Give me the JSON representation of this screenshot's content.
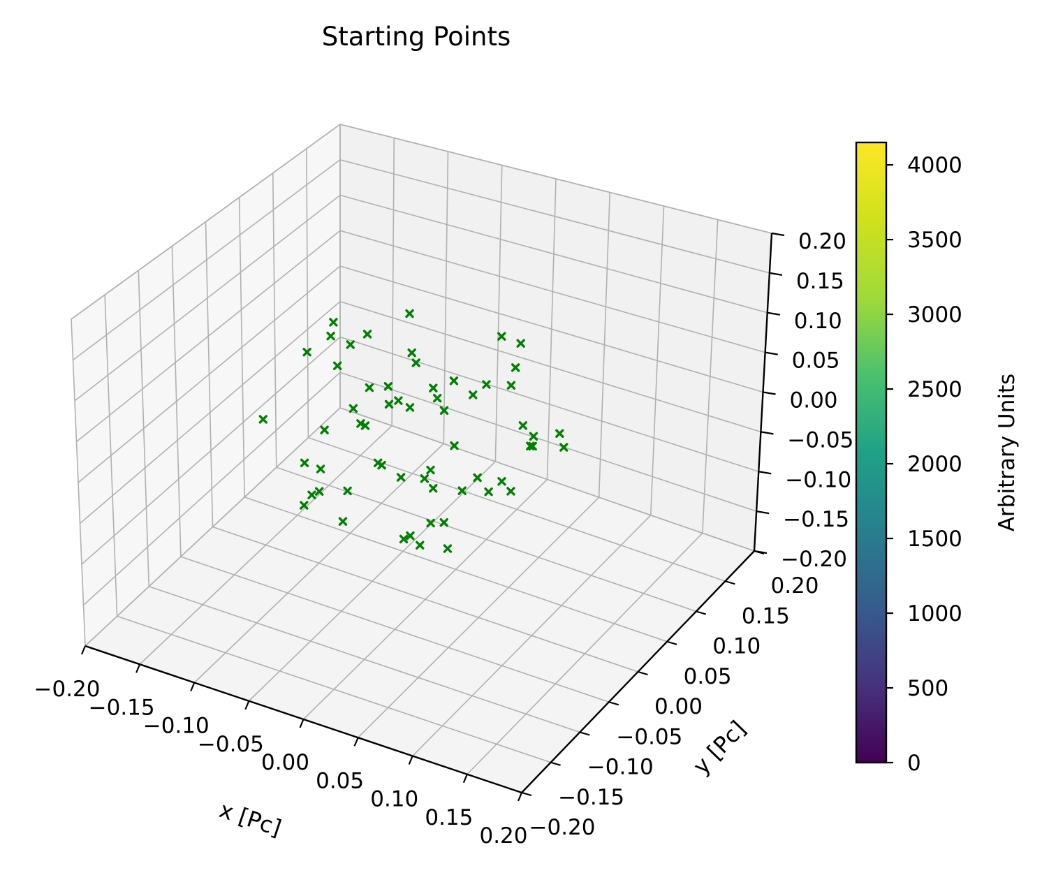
{
  "chart_data": {
    "type": "scatter",
    "projection": "3d",
    "title": "Starting Points",
    "xlabel": "x [Pc]",
    "ylabel": "y [Pc]",
    "zlabel": "",
    "xlim": [
      -0.2,
      0.2
    ],
    "ylim": [
      -0.2,
      0.2
    ],
    "zlim": [
      -0.2,
      0.2
    ],
    "grid": true,
    "x_ticks": [
      "−0.20",
      "−0.15",
      "−0.10",
      "−0.05",
      "0.00",
      "0.05",
      "0.10",
      "0.15",
      "0.20"
    ],
    "y_ticks": [
      "−0.20",
      "−0.15",
      "−0.10",
      "−0.05",
      "0.00",
      "0.05",
      "0.10",
      "0.15",
      "0.20"
    ],
    "z_ticks": [
      "−0.20",
      "−0.15",
      "−0.10",
      "−0.05",
      "0.00",
      "0.05",
      "0.10",
      "0.15",
      "0.20"
    ],
    "marker": "x",
    "marker_color": "#008000",
    "series": [
      {
        "points": [
          [
            -0.126,
            -0.042,
            0.005
          ],
          [
            -0.1,
            0.05,
            0.048
          ],
          [
            -0.003,
            0.078,
            0.004
          ],
          [
            -0.095,
            0.068,
            0.051
          ],
          [
            -0.045,
            0.05,
            -0.01
          ],
          [
            -0.02,
            0.05,
            0.013
          ],
          [
            -0.074,
            0.01,
            0.005
          ],
          [
            -0.05,
            0.04,
            0.004
          ],
          [
            -0.014,
            -0.056,
            0.01
          ],
          [
            0.061,
            0.046,
            0.016
          ],
          [
            -0.093,
            -0.009,
            -0.068
          ],
          [
            -0.082,
            -0.042,
            -0.072
          ],
          [
            -0.037,
            -0.071,
            -0.064
          ],
          [
            0.027,
            -0.02,
            -0.074
          ],
          [
            0.016,
            -0.024,
            -0.009
          ],
          [
            0.084,
            0.074,
            -0.023
          ],
          [
            -0.073,
            -0.017,
            0.08
          ],
          [
            -0.064,
            0.081,
            0.082
          ],
          [
            -0.011,
            0.027,
            0.047
          ],
          [
            0.017,
            0.087,
            0.082
          ],
          [
            -0.125,
            0.025,
            0.045
          ],
          [
            0.049,
            -0.083,
            -0.018
          ],
          [
            0.078,
            -0.003,
            -0.024
          ],
          [
            0.03,
            -0.065,
            -0.068
          ],
          [
            -0.031,
            -0.054,
            0.051
          ],
          [
            -0.032,
            0.029,
            0.082
          ],
          [
            0.051,
            0.083,
            -0.03
          ],
          [
            0.001,
            -0.077,
            0.029
          ],
          [
            0.024,
            0.0,
            0.008
          ],
          [
            0.013,
            -0.061,
            -0.071
          ],
          [
            -0.047,
            -0.046,
            -0.048
          ],
          [
            -0.004,
            0.048,
            0.044
          ],
          [
            -0.034,
            -0.035,
            0.082
          ],
          [
            0.064,
            0.054,
            -0.015
          ],
          [
            0.04,
            0.063,
            0.046
          ],
          [
            -0.061,
            -0.091,
            -0.04
          ],
          [
            0.01,
            0.04,
            -0.086
          ],
          [
            -0.048,
            0.02,
            0.038
          ],
          [
            -0.105,
            0.032,
            0.088
          ],
          [
            -0.016,
            0.024,
            -0.07
          ],
          [
            0.051,
            0.082,
            -0.042
          ],
          [
            -0.032,
            0.036,
            0.064
          ],
          [
            -0.018,
            0.058,
            -0.008
          ],
          [
            0.06,
            -0.074,
            -0.052
          ],
          [
            0.069,
            -0.024,
            -0.013
          ],
          [
            0.008,
            -0.058,
            0.003
          ],
          [
            -0.042,
            -0.027,
            0.024
          ],
          [
            -0.05,
            -0.086,
            -0.021
          ],
          [
            0.062,
            0.011,
            -0.029
          ],
          [
            0.039,
            0.079,
            0.088
          ],
          [
            -0.094,
            0.009,
            0.091
          ],
          [
            0.05,
            0.051,
            0.082
          ],
          [
            0.003,
            0.089,
            0.012
          ],
          [
            0.042,
            -0.067,
            0.011
          ],
          [
            -0.061,
            -0.09,
            0.013
          ],
          [
            -0.008,
            -0.05,
            0.083
          ],
          [
            0.009,
            -0.043,
            -0.082
          ],
          [
            0.015,
            0.056,
            -0.079
          ],
          [
            -0.083,
            -0.02,
            -0.005
          ],
          [
            0.076,
            0.081,
            -0.014
          ]
        ]
      }
    ],
    "colorbar": {
      "label": "Arbitrary Units",
      "colormap": "viridis",
      "range": [
        0,
        4150
      ],
      "ticks": [
        "0",
        "500",
        "1000",
        "1500",
        "2000",
        "2500",
        "3000",
        "3500",
        "4000"
      ]
    }
  }
}
